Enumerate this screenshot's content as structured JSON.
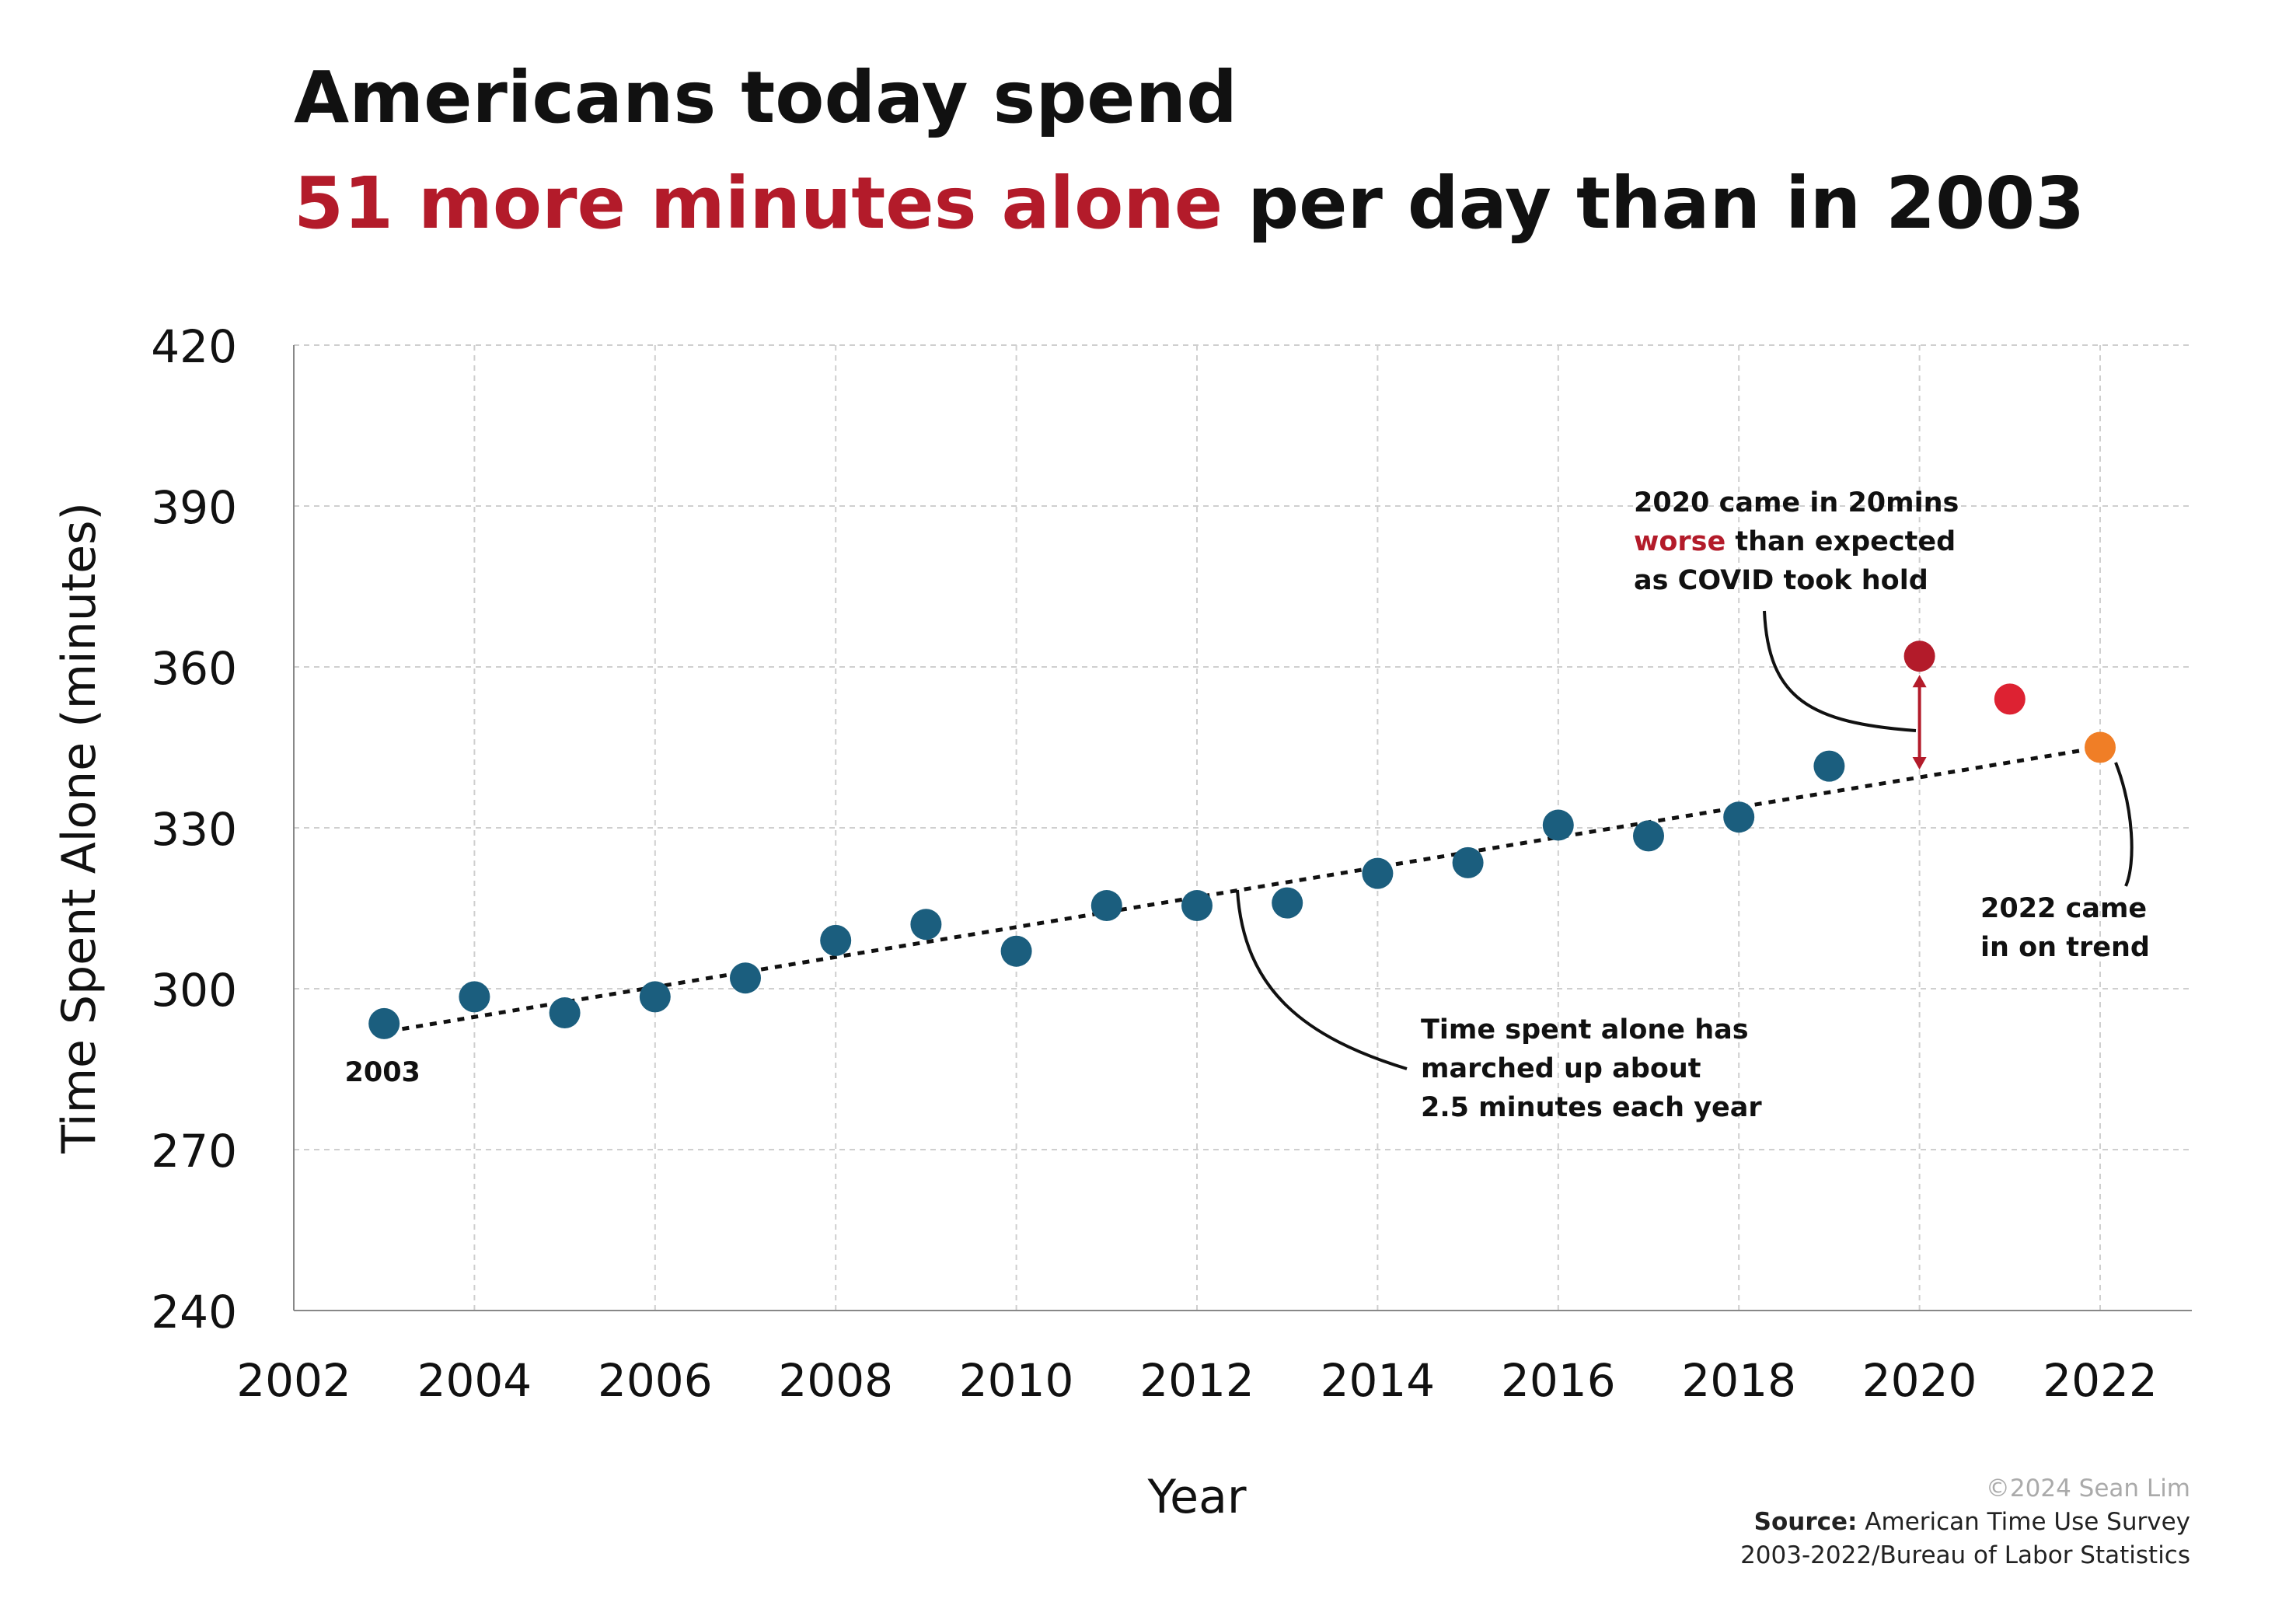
{
  "title": {
    "line1": "Americans today spend",
    "line2_highlight": "51 more minutes alone",
    "line2_rest": " per day than in 2003",
    "highlight_color": "#b31b2a"
  },
  "credit": {
    "copyright": "©2024 Sean Lim",
    "source_label": "Source:",
    "source_text": " American Time Use Survey",
    "source_period": "2003-2022/Bureau of Labor Statistics"
  },
  "chart_data": {
    "type": "scatter",
    "xlabel": "Year",
    "ylabel": "Time Spent Alone (minutes)",
    "xlim": [
      2002,
      2023
    ],
    "ylim": [
      240,
      420
    ],
    "x_ticks": [
      2002,
      2004,
      2006,
      2008,
      2010,
      2012,
      2014,
      2016,
      2018,
      2020,
      2022
    ],
    "y_ticks": [
      240,
      270,
      300,
      330,
      360,
      390,
      420
    ],
    "grid": true,
    "grid_style": "dashed",
    "series": [
      {
        "color": "#1b5e7e",
        "points": [
          {
            "x": 2003,
            "y": 293.5
          },
          {
            "x": 2004,
            "y": 298.5
          },
          {
            "x": 2005,
            "y": 295.5
          },
          {
            "x": 2006,
            "y": 298.5
          },
          {
            "x": 2007,
            "y": 302
          },
          {
            "x": 2008,
            "y": 309
          },
          {
            "x": 2009,
            "y": 312
          },
          {
            "x": 2010,
            "y": 307
          },
          {
            "x": 2011,
            "y": 315.5
          },
          {
            "x": 2012,
            "y": 315.5
          },
          {
            "x": 2013,
            "y": 316
          },
          {
            "x": 2014,
            "y": 321.5
          },
          {
            "x": 2015,
            "y": 323.5
          },
          {
            "x": 2016,
            "y": 330.5
          },
          {
            "x": 2017,
            "y": 328.5
          },
          {
            "x": 2018,
            "y": 332
          },
          {
            "x": 2019,
            "y": 341.5
          }
        ]
      },
      {
        "color": "#b31b2a",
        "points": [
          {
            "x": 2020,
            "y": 362
          }
        ]
      },
      {
        "color": "#dd2232",
        "points": [
          {
            "x": 2021,
            "y": 354
          }
        ]
      },
      {
        "color": "#f07e26",
        "points": [
          {
            "x": 2022,
            "y": 345
          }
        ]
      }
    ],
    "trendline": {
      "x": [
        2003.2,
        2022
      ],
      "y": [
        292.5,
        345
      ],
      "style": "dotted",
      "color": "#111111"
    },
    "annotations": {
      "point_label": {
        "text": "2003",
        "x": 2003,
        "y": 293.5
      },
      "covid": {
        "lines": [
          "2020 came in 20mins",
          "worse than expected",
          "as COVID took hold"
        ],
        "highlight_word": "worse",
        "highlight_rest": " than expected",
        "arrow": {
          "x": 2020,
          "from_y": 340,
          "to_y": 362,
          "color": "#b31b2a"
        }
      },
      "trend": {
        "lines": [
          "Time spent alone has",
          "marched up about",
          "2.5 minutes each year"
        ]
      },
      "on_trend": {
        "lines": [
          "2022 came",
          "in on trend"
        ]
      }
    }
  }
}
